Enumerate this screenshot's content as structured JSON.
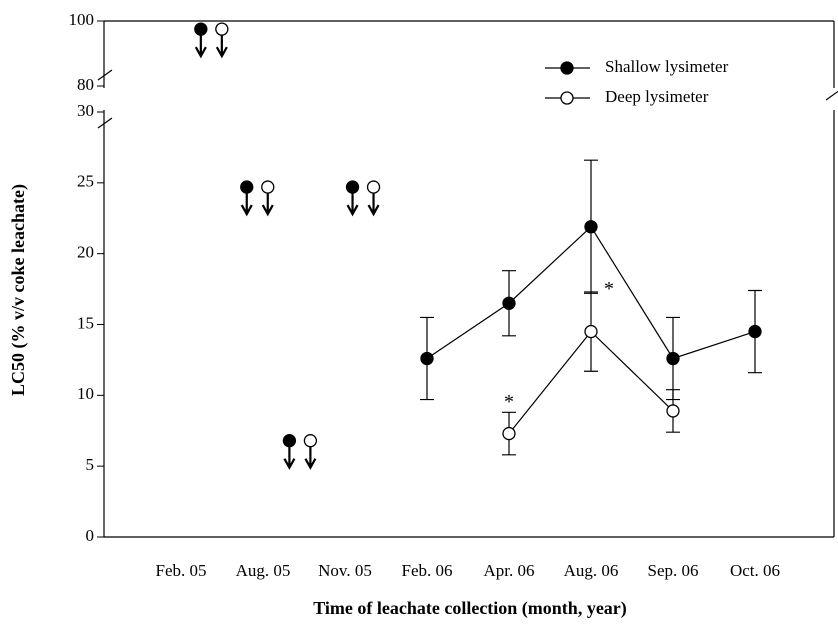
{
  "chart_data": {
    "type": "line",
    "x_label": "Time of leachate collection (month, year)",
    "y_label": "LC50 (% v/v coke leachate)",
    "categories": [
      "Feb. 05",
      "Aug. 05",
      "Nov. 05",
      "Feb. 06",
      "Apr. 06",
      "Aug. 06",
      "Sep. 06",
      "Oct. 06"
    ],
    "series": [
      {
        "name": "Shallow lysimeter",
        "color": "#000000",
        "fill": "#000000",
        "values": [
          null,
          null,
          null,
          12.6,
          16.5,
          21.9,
          12.6,
          14.5
        ],
        "errors": [
          null,
          null,
          null,
          2.9,
          2.3,
          4.7,
          2.9,
          2.9
        ]
      },
      {
        "name": "Deep lysimeter",
        "color": "#000000",
        "fill": "#ffffff",
        "values": [
          null,
          null,
          null,
          null,
          7.3,
          14.5,
          8.9,
          null
        ],
        "errors": [
          null,
          null,
          null,
          null,
          1.5,
          2.8,
          1.5,
          null
        ]
      }
    ],
    "ylim": [
      0,
      30
    ],
    "yticks": [
      0,
      5,
      10,
      15,
      20,
      25,
      30
    ],
    "ylim_upper": [
      80,
      100
    ],
    "yticks_upper": [
      80,
      100
    ],
    "censored": [
      {
        "x": 0.37,
        "value": 97.5,
        "axis": "upper"
      },
      {
        "x": 0.93,
        "value": 24.7,
        "axis": "lower"
      },
      {
        "x": 1.45,
        "value": 6.8,
        "axis": "lower"
      },
      {
        "x": 2.22,
        "value": 24.7,
        "axis": "lower"
      }
    ],
    "annotations": [
      {
        "text": "*",
        "x": 4,
        "value": 9.7
      },
      {
        "text": "*",
        "x": 5.22,
        "value": 17.7
      }
    ],
    "legend": "top-right"
  }
}
